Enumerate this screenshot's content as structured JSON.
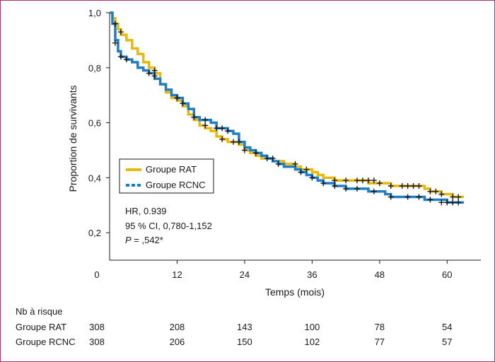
{
  "chart_data": {
    "type": "line",
    "subtype": "kaplan-meier",
    "title": "",
    "xlabel": "Temps (mois)",
    "ylabel": "Proportion de survivants",
    "xlim": [
      0,
      66
    ],
    "ylim": [
      0.1,
      1.0
    ],
    "x_ticks": [
      0,
      12,
      24,
      36,
      48,
      60
    ],
    "x_tick_labels": [
      "0",
      "12",
      "24",
      "36",
      "48",
      "60"
    ],
    "y_ticks": [
      0.2,
      0.4,
      0.6,
      0.8,
      1.0
    ],
    "y_tick_labels": [
      "0,2",
      "0,4",
      "0,6",
      "0,8",
      "1,0"
    ],
    "grid": false,
    "legend_position": "left-middle",
    "series": [
      {
        "name": "Groupe RAT",
        "color": "#e8b80c",
        "line_style": "solid",
        "steps": [
          [
            0,
            1.0
          ],
          [
            0.5,
            0.98
          ],
          [
            1,
            0.96
          ],
          [
            1.5,
            0.94
          ],
          [
            2,
            0.92
          ],
          [
            3,
            0.9
          ],
          [
            4,
            0.87
          ],
          [
            5,
            0.85
          ],
          [
            6,
            0.82
          ],
          [
            7,
            0.8
          ],
          [
            8,
            0.78
          ],
          [
            9,
            0.74
          ],
          [
            10,
            0.71
          ],
          [
            11,
            0.69
          ],
          [
            12,
            0.68
          ],
          [
            13,
            0.66
          ],
          [
            14,
            0.63
          ],
          [
            15,
            0.61
          ],
          [
            16,
            0.59
          ],
          [
            17,
            0.58
          ],
          [
            18,
            0.57
          ],
          [
            19,
            0.55
          ],
          [
            20,
            0.54
          ],
          [
            21,
            0.53
          ],
          [
            22,
            0.53
          ],
          [
            23,
            0.52
          ],
          [
            24,
            0.5
          ],
          [
            25,
            0.49
          ],
          [
            26,
            0.48
          ],
          [
            27,
            0.47
          ],
          [
            28,
            0.47
          ],
          [
            29,
            0.46
          ],
          [
            30,
            0.46
          ],
          [
            31,
            0.45
          ],
          [
            32,
            0.45
          ],
          [
            33,
            0.44
          ],
          [
            34,
            0.43
          ],
          [
            35,
            0.43
          ],
          [
            36,
            0.42
          ],
          [
            37,
            0.41
          ],
          [
            38,
            0.4
          ],
          [
            39,
            0.4
          ],
          [
            40,
            0.39
          ],
          [
            42,
            0.39
          ],
          [
            44,
            0.39
          ],
          [
            46,
            0.38
          ],
          [
            48,
            0.38
          ],
          [
            50,
            0.37
          ],
          [
            52,
            0.37
          ],
          [
            54,
            0.37
          ],
          [
            56,
            0.36
          ],
          [
            57,
            0.35
          ],
          [
            58,
            0.35
          ],
          [
            59,
            0.34
          ],
          [
            60,
            0.34
          ],
          [
            61,
            0.33
          ],
          [
            62,
            0.33
          ]
        ],
        "censor_marks": [
          [
            1,
            0.96
          ],
          [
            2,
            0.93
          ],
          [
            8,
            0.79
          ],
          [
            12,
            0.69
          ],
          [
            13,
            0.67
          ],
          [
            17,
            0.59
          ],
          [
            20,
            0.54
          ],
          [
            22,
            0.53
          ],
          [
            24,
            0.5
          ],
          [
            26,
            0.49
          ],
          [
            29,
            0.47
          ],
          [
            33,
            0.45
          ],
          [
            35,
            0.43
          ],
          [
            40,
            0.39
          ],
          [
            42,
            0.39
          ],
          [
            44,
            0.39
          ],
          [
            45,
            0.39
          ],
          [
            46,
            0.39
          ],
          [
            47,
            0.39
          ],
          [
            48,
            0.38
          ],
          [
            50,
            0.37
          ],
          [
            52,
            0.37
          ],
          [
            53,
            0.37
          ],
          [
            54,
            0.37
          ],
          [
            55,
            0.37
          ],
          [
            57,
            0.35
          ],
          [
            58,
            0.35
          ],
          [
            59,
            0.34
          ],
          [
            61,
            0.33
          ],
          [
            62,
            0.33
          ]
        ]
      },
      {
        "name": "Groupe RCNC",
        "color": "#1f7ec4",
        "line_style": "dashed",
        "steps": [
          [
            0,
            1.0
          ],
          [
            0.5,
            0.96
          ],
          [
            1,
            0.9
          ],
          [
            1.5,
            0.86
          ],
          [
            2,
            0.84
          ],
          [
            3,
            0.83
          ],
          [
            4,
            0.82
          ],
          [
            5,
            0.8
          ],
          [
            6,
            0.79
          ],
          [
            7,
            0.78
          ],
          [
            8,
            0.76
          ],
          [
            9,
            0.74
          ],
          [
            10,
            0.72
          ],
          [
            11,
            0.7
          ],
          [
            12,
            0.69
          ],
          [
            13,
            0.67
          ],
          [
            14,
            0.65
          ],
          [
            15,
            0.62
          ],
          [
            16,
            0.61
          ],
          [
            17,
            0.61
          ],
          [
            18,
            0.6
          ],
          [
            19,
            0.58
          ],
          [
            20,
            0.58
          ],
          [
            21,
            0.57
          ],
          [
            22,
            0.56
          ],
          [
            23,
            0.53
          ],
          [
            24,
            0.51
          ],
          [
            25,
            0.5
          ],
          [
            26,
            0.49
          ],
          [
            27,
            0.48
          ],
          [
            28,
            0.47
          ],
          [
            29,
            0.46
          ],
          [
            30,
            0.45
          ],
          [
            31,
            0.44
          ],
          [
            32,
            0.44
          ],
          [
            33,
            0.43
          ],
          [
            34,
            0.42
          ],
          [
            35,
            0.41
          ],
          [
            36,
            0.4
          ],
          [
            37,
            0.39
          ],
          [
            38,
            0.38
          ],
          [
            40,
            0.37
          ],
          [
            42,
            0.36
          ],
          [
            44,
            0.36
          ],
          [
            46,
            0.35
          ],
          [
            48,
            0.35
          ],
          [
            49,
            0.34
          ],
          [
            50,
            0.33
          ],
          [
            52,
            0.33
          ],
          [
            54,
            0.33
          ],
          [
            56,
            0.32
          ],
          [
            58,
            0.32
          ],
          [
            60,
            0.31
          ],
          [
            62,
            0.31
          ]
        ],
        "censor_marks": [
          [
            1,
            0.89
          ],
          [
            2,
            0.84
          ],
          [
            3,
            0.83
          ],
          [
            7,
            0.78
          ],
          [
            8,
            0.77
          ],
          [
            12,
            0.69
          ],
          [
            15,
            0.62
          ],
          [
            17,
            0.61
          ],
          [
            19,
            0.58
          ],
          [
            20,
            0.58
          ],
          [
            21,
            0.57
          ],
          [
            23,
            0.53
          ],
          [
            26,
            0.49
          ],
          [
            28,
            0.47
          ],
          [
            30,
            0.45
          ],
          [
            34,
            0.42
          ],
          [
            36,
            0.4
          ],
          [
            38,
            0.38
          ],
          [
            40,
            0.37
          ],
          [
            42,
            0.36
          ],
          [
            44,
            0.36
          ],
          [
            47,
            0.35
          ],
          [
            50,
            0.33
          ],
          [
            53,
            0.33
          ],
          [
            55,
            0.33
          ],
          [
            57,
            0.32
          ],
          [
            59,
            0.31
          ],
          [
            60,
            0.31
          ],
          [
            61,
            0.31
          ],
          [
            62,
            0.31
          ]
        ]
      }
    ],
    "annotations": {
      "hr": "HR, 0.939",
      "ci": "95 % CI, 0,780-1,152",
      "p_label": "P",
      "p_value": " = ,542*"
    },
    "risk_table": {
      "title": "Nb à risque",
      "times": [
        0,
        12,
        24,
        36,
        48,
        60
      ],
      "rows": [
        {
          "label": "Groupe RAT",
          "values": [
            "308",
            "208",
            "143",
            "100",
            "78",
            "54"
          ]
        },
        {
          "label": "Groupe RCNC",
          "values": [
            "308",
            "206",
            "150",
            "102",
            "77",
            "57"
          ]
        }
      ]
    }
  }
}
